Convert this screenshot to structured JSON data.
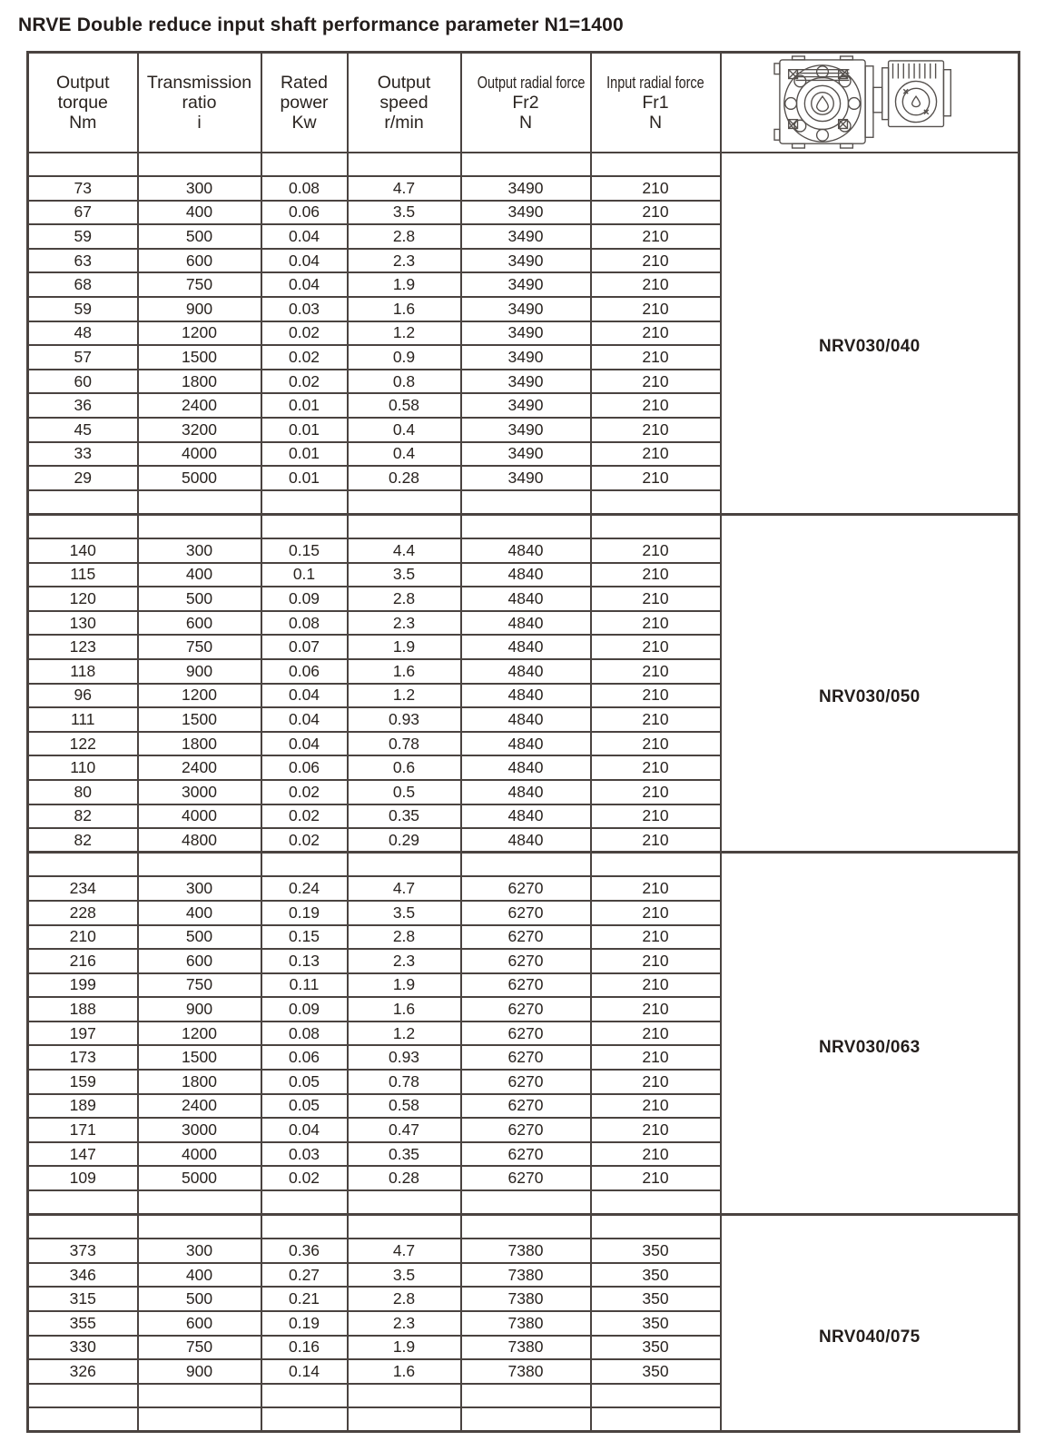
{
  "title": "NRVE Double reduce input shaft performance parameter N1=1400",
  "table": {
    "header": {
      "columns": [
        {
          "lines": [
            "Output",
            "torque",
            "Nm"
          ]
        },
        {
          "lines": [
            "Transmission",
            "ratio",
            "i"
          ]
        },
        {
          "lines": [
            "Rated",
            "power",
            "Kw"
          ]
        },
        {
          "lines": [
            "Output",
            "speed",
            "r/min"
          ]
        },
        {
          "lines": [
            "Output radial force",
            "Fr2",
            "N"
          ],
          "narrow_first_line": true
        },
        {
          "lines": [
            "Input radial force",
            "Fr1",
            "N"
          ],
          "narrow_first_line": true
        }
      ],
      "image_cell_icon": "gearbox-drawing"
    },
    "line_color": "#4a4340",
    "text_color": "#29231f",
    "sections": [
      {
        "model": "NRV030/040",
        "empty_before": 1,
        "empty_after": 1,
        "rows": [
          [
            "73",
            "300",
            "0.08",
            "4.7",
            "3490",
            "210"
          ],
          [
            "67",
            "400",
            "0.06",
            "3.5",
            "3490",
            "210"
          ],
          [
            "59",
            "500",
            "0.04",
            "2.8",
            "3490",
            "210"
          ],
          [
            "63",
            "600",
            "0.04",
            "2.3",
            "3490",
            "210"
          ],
          [
            "68",
            "750",
            "0.04",
            "1.9",
            "3490",
            "210"
          ],
          [
            "59",
            "900",
            "0.03",
            "1.6",
            "3490",
            "210"
          ],
          [
            "48",
            "1200",
            "0.02",
            "1.2",
            "3490",
            "210"
          ],
          [
            "57",
            "1500",
            "0.02",
            "0.9",
            "3490",
            "210"
          ],
          [
            "60",
            "1800",
            "0.02",
            "0.8",
            "3490",
            "210"
          ],
          [
            "36",
            "2400",
            "0.01",
            "0.58",
            "3490",
            "210"
          ],
          [
            "45",
            "3200",
            "0.01",
            "0.4",
            "3490",
            "210"
          ],
          [
            "33",
            "4000",
            "0.01",
            "0.4",
            "3490",
            "210"
          ],
          [
            "29",
            "5000",
            "0.01",
            "0.28",
            "3490",
            "210"
          ]
        ]
      },
      {
        "model": "NRV030/050",
        "empty_before": 1,
        "empty_after": 0,
        "rows": [
          [
            "140",
            "300",
            "0.15",
            "4.4",
            "4840",
            "210"
          ],
          [
            "115",
            "400",
            "0.1",
            "3.5",
            "4840",
            "210"
          ],
          [
            "120",
            "500",
            "0.09",
            "2.8",
            "4840",
            "210"
          ],
          [
            "130",
            "600",
            "0.08",
            "2.3",
            "4840",
            "210"
          ],
          [
            "123",
            "750",
            "0.07",
            "1.9",
            "4840",
            "210"
          ],
          [
            "118",
            "900",
            "0.06",
            "1.6",
            "4840",
            "210"
          ],
          [
            "96",
            "1200",
            "0.04",
            "1.2",
            "4840",
            "210"
          ],
          [
            "111",
            "1500",
            "0.04",
            "0.93",
            "4840",
            "210"
          ],
          [
            "122",
            "1800",
            "0.04",
            "0.78",
            "4840",
            "210"
          ],
          [
            "110",
            "2400",
            "0.06",
            "0.6",
            "4840",
            "210"
          ],
          [
            "80",
            "3000",
            "0.02",
            "0.5",
            "4840",
            "210"
          ],
          [
            "82",
            "4000",
            "0.02",
            "0.35",
            "4840",
            "210"
          ],
          [
            "82",
            "4800",
            "0.02",
            "0.29",
            "4840",
            "210"
          ]
        ]
      },
      {
        "model": "NRV030/063",
        "empty_before": 1,
        "empty_after": 1,
        "rows": [
          [
            "234",
            "300",
            "0.24",
            "4.7",
            "6270",
            "210"
          ],
          [
            "228",
            "400",
            "0.19",
            "3.5",
            "6270",
            "210"
          ],
          [
            "210",
            "500",
            "0.15",
            "2.8",
            "6270",
            "210"
          ],
          [
            "216",
            "600",
            "0.13",
            "2.3",
            "6270",
            "210"
          ],
          [
            "199",
            "750",
            "0.11",
            "1.9",
            "6270",
            "210"
          ],
          [
            "188",
            "900",
            "0.09",
            "1.6",
            "6270",
            "210"
          ],
          [
            "197",
            "1200",
            "0.08",
            "1.2",
            "6270",
            "210"
          ],
          [
            "173",
            "1500",
            "0.06",
            "0.93",
            "6270",
            "210"
          ],
          [
            "159",
            "1800",
            "0.05",
            "0.78",
            "6270",
            "210"
          ],
          [
            "189",
            "2400",
            "0.05",
            "0.58",
            "6270",
            "210"
          ],
          [
            "171",
            "3000",
            "0.04",
            "0.47",
            "6270",
            "210"
          ],
          [
            "147",
            "4000",
            "0.03",
            "0.35",
            "6270",
            "210"
          ],
          [
            "109",
            "5000",
            "0.02",
            "0.28",
            "6270",
            "210"
          ]
        ]
      },
      {
        "model": "NRV040/075",
        "empty_before": 1,
        "empty_after": 2,
        "rows": [
          [
            "373",
            "300",
            "0.36",
            "4.7",
            "7380",
            "350"
          ],
          [
            "346",
            "400",
            "0.27",
            "3.5",
            "7380",
            "350"
          ],
          [
            "315",
            "500",
            "0.21",
            "2.8",
            "7380",
            "350"
          ],
          [
            "355",
            "600",
            "0.19",
            "2.3",
            "7380",
            "350"
          ],
          [
            "330",
            "750",
            "0.16",
            "1.9",
            "7380",
            "350"
          ],
          [
            "326",
            "900",
            "0.14",
            "1.6",
            "7380",
            "350"
          ]
        ]
      }
    ]
  }
}
